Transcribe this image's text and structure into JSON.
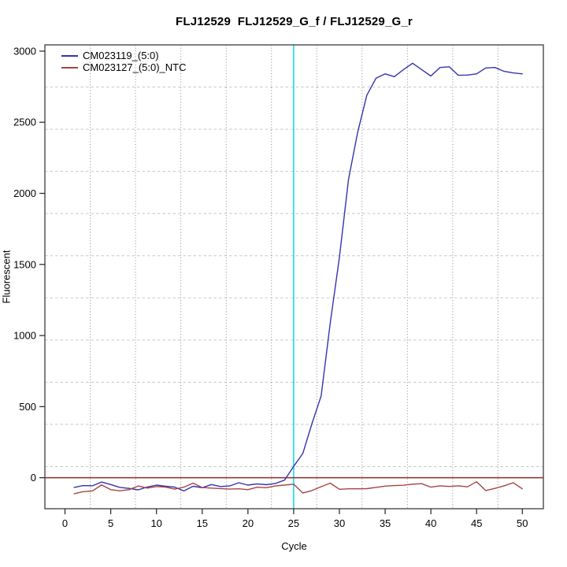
{
  "chart_data": {
    "type": "line",
    "title": "FLJ12529  FLJ12529_G_f / FLJ12529_G_r",
    "xlabel": "Cycle",
    "ylabel": "Fluorescent",
    "xticks": [
      0,
      5,
      10,
      15,
      20,
      25,
      30,
      35,
      40,
      45,
      50
    ],
    "yticks": [
      0,
      500,
      1000,
      1500,
      2000,
      2500,
      3000
    ],
    "xlim": [
      -2.2,
      52.3
    ],
    "ylim": [
      -218,
      3044
    ],
    "grid": {
      "on": true,
      "nx": 11,
      "ny": 11
    },
    "threshold_line_y": 0,
    "vertical_marker_x": 25,
    "legend": {
      "position": "top-left",
      "entries": [
        {
          "label": "CM023119_(5:0)",
          "color": "#3434ac"
        },
        {
          "label": "CM023127_(5:0)_NTC",
          "color": "#a84444"
        }
      ]
    },
    "series": [
      {
        "name": "CM023119_(5:0)",
        "color": "#3434ac",
        "x_start": 1,
        "values": [
          -68,
          -55,
          -57,
          -30,
          -48,
          -68,
          -75,
          -85,
          -65,
          -52,
          -60,
          -66,
          -93,
          -60,
          -70,
          -48,
          -62,
          -58,
          -35,
          -52,
          -43,
          -49,
          -40,
          -17,
          80,
          170,
          380,
          575,
          1090,
          1550,
          2100,
          2430,
          2690,
          2810,
          2840,
          2820,
          2870,
          2915,
          2870,
          2825,
          2885,
          2890,
          2830,
          2832,
          2840,
          2882,
          2885,
          2858,
          2847,
          2840
        ]
      },
      {
        "name": "CM023127_(5:0)_NTC",
        "color": "#a84444",
        "x_start": 1,
        "values": [
          -112,
          -98,
          -93,
          -50,
          -84,
          -92,
          -84,
          -58,
          -73,
          -62,
          -66,
          -80,
          -66,
          -38,
          -69,
          -73,
          -76,
          -80,
          -78,
          -84,
          -67,
          -70,
          -58,
          -52,
          -45,
          -108,
          -90,
          -63,
          -38,
          -81,
          -78,
          -78,
          -77,
          -68,
          -59,
          -55,
          -53,
          -45,
          -42,
          -66,
          -57,
          -61,
          -57,
          -64,
          -28,
          -90,
          -75,
          -57,
          -35,
          -78
        ]
      }
    ],
    "colors": {
      "vertical_marker": "#17dde8",
      "threshold": "#8e2a2a",
      "grid_horizontal": "#c8c8c8",
      "grid_vertical": "#8a8a8a",
      "box": "#4a4a4a",
      "tick": "#222222",
      "tick_label": "#000000"
    }
  }
}
